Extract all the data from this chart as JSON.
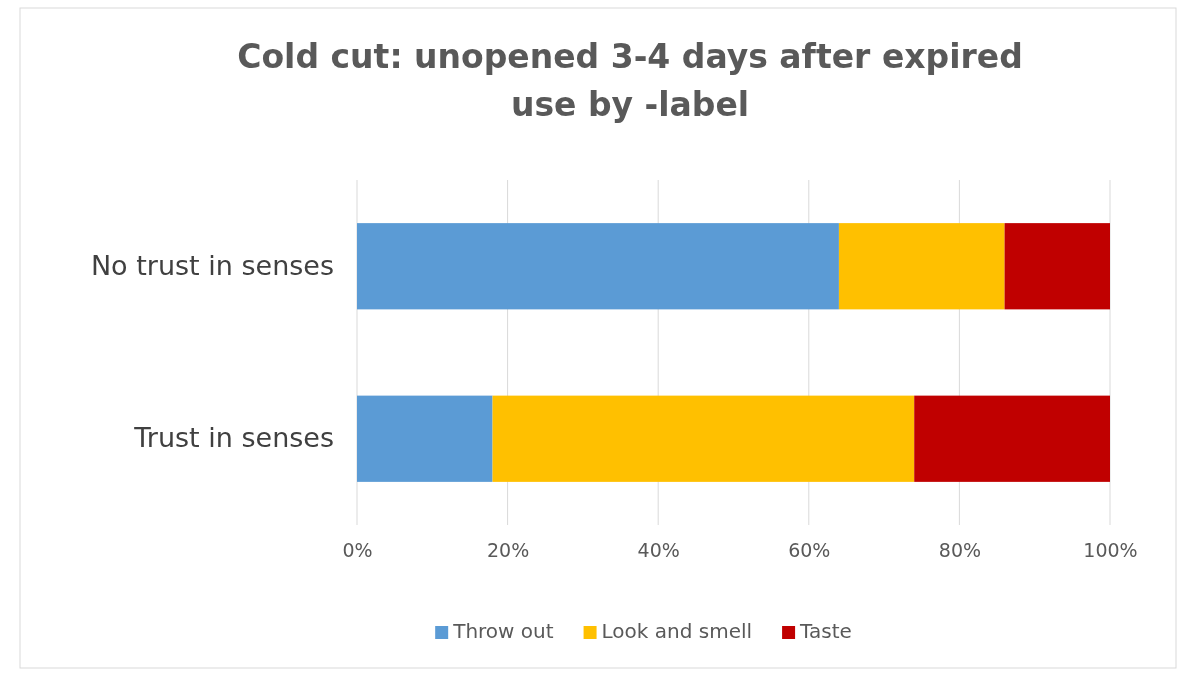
{
  "chart_data": {
    "type": "bar",
    "orientation": "horizontal",
    "stacked": true,
    "title": "Cold cut: unopened 3-4 days after expired use by -label",
    "categories": [
      "No trust in senses",
      "Trust in senses"
    ],
    "series": [
      {
        "name": "Throw out",
        "color": "#5b9bd5",
        "values": [
          64,
          18
        ]
      },
      {
        "name": "Look and smell",
        "color": "#ffc000",
        "values": [
          22,
          56
        ]
      },
      {
        "name": "Taste",
        "color": "#c00000",
        "values": [
          14,
          26
        ]
      }
    ],
    "xlim": [
      0,
      100
    ],
    "xticks": [
      {
        "value": 0,
        "label": "0%"
      },
      {
        "value": 20,
        "label": "20%"
      },
      {
        "value": 40,
        "label": "40%"
      },
      {
        "value": 60,
        "label": "60%"
      },
      {
        "value": 80,
        "label": "80%"
      },
      {
        "value": 100,
        "label": "100%"
      }
    ],
    "grid": "x",
    "legend": "bottom"
  }
}
